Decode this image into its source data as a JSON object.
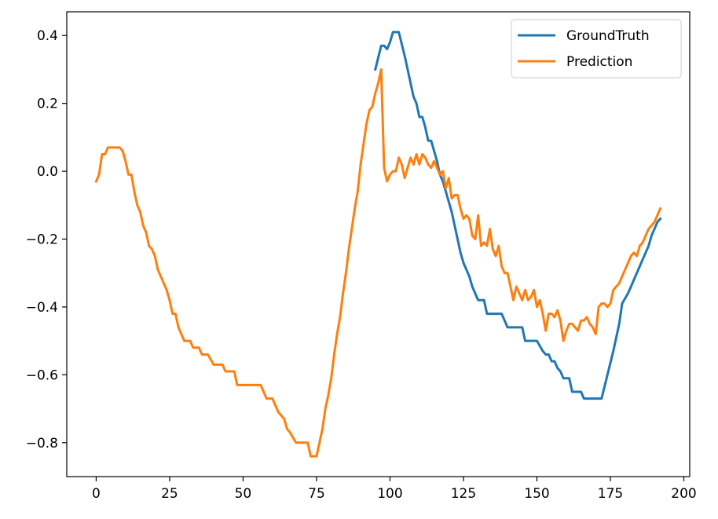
{
  "chart_data": {
    "type": "line",
    "xlim": [
      -10,
      202
    ],
    "ylim": [
      -0.9,
      0.47
    ],
    "xticks": [
      0,
      25,
      50,
      75,
      100,
      125,
      150,
      175,
      200
    ],
    "yticks": [
      0.4,
      0.2,
      0.0,
      -0.2,
      -0.4,
      -0.6,
      -0.8
    ],
    "xtick_labels": [
      "0",
      "25",
      "50",
      "75",
      "100",
      "125",
      "150",
      "175",
      "200"
    ],
    "ytick_labels": [
      "0.4",
      "0.2",
      "0.0",
      "−0.2",
      "−0.4",
      "−0.6",
      "−0.8"
    ],
    "legend_position": "top-right",
    "grid": false,
    "series": [
      {
        "name": "GroundTruth",
        "color": "#1f77b4",
        "points": [
          [
            95,
            0.3
          ],
          [
            97,
            0.37
          ],
          [
            98,
            0.37
          ],
          [
            99,
            0.36
          ],
          [
            100,
            0.38
          ],
          [
            101,
            0.41
          ],
          [
            103,
            0.41
          ],
          [
            105,
            0.34
          ],
          [
            107,
            0.26
          ],
          [
            108,
            0.22
          ],
          [
            109,
            0.2
          ],
          [
            110,
            0.16
          ],
          [
            111,
            0.16
          ],
          [
            112,
            0.13
          ],
          [
            113,
            0.09
          ],
          [
            114,
            0.09
          ],
          [
            115,
            0.06
          ],
          [
            116,
            0.03
          ],
          [
            117,
            -0.01
          ],
          [
            118,
            -0.03
          ],
          [
            119,
            -0.06
          ],
          [
            120,
            -0.09
          ],
          [
            121,
            -0.12
          ],
          [
            122,
            -0.16
          ],
          [
            123,
            -0.2
          ],
          [
            124,
            -0.24
          ],
          [
            125,
            -0.27
          ],
          [
            126,
            -0.29
          ],
          [
            127,
            -0.31
          ],
          [
            128,
            -0.34
          ],
          [
            130,
            -0.38
          ],
          [
            132,
            -0.38
          ],
          [
            133,
            -0.42
          ],
          [
            138,
            -0.42
          ],
          [
            140,
            -0.46
          ],
          [
            145,
            -0.46
          ],
          [
            146,
            -0.5
          ],
          [
            150,
            -0.5
          ],
          [
            152,
            -0.53
          ],
          [
            153,
            -0.54
          ],
          [
            154,
            -0.54
          ],
          [
            155,
            -0.56
          ],
          [
            156,
            -0.56
          ],
          [
            157,
            -0.58
          ],
          [
            158,
            -0.59
          ],
          [
            159,
            -0.61
          ],
          [
            161,
            -0.61
          ],
          [
            162,
            -0.65
          ],
          [
            165,
            -0.65
          ],
          [
            166,
            -0.67
          ],
          [
            172,
            -0.67
          ],
          [
            174,
            -0.6
          ],
          [
            176,
            -0.53
          ],
          [
            178,
            -0.45
          ],
          [
            179,
            -0.39
          ],
          [
            181,
            -0.36
          ],
          [
            183,
            -0.32
          ],
          [
            185,
            -0.28
          ],
          [
            187,
            -0.24
          ],
          [
            188,
            -0.22
          ],
          [
            189,
            -0.19
          ],
          [
            190,
            -0.17
          ],
          [
            191,
            -0.15
          ],
          [
            192,
            -0.14
          ]
        ]
      },
      {
        "name": "Prediction",
        "color": "#ff7f0e",
        "points": [
          [
            0,
            -0.03
          ],
          [
            1,
            -0.01
          ],
          [
            2,
            0.05
          ],
          [
            3,
            0.05
          ],
          [
            4,
            0.07
          ],
          [
            8,
            0.07
          ],
          [
            9,
            0.06
          ],
          [
            10,
            0.03
          ],
          [
            11,
            -0.01
          ],
          [
            12,
            -0.01
          ],
          [
            13,
            -0.06
          ],
          [
            14,
            -0.1
          ],
          [
            15,
            -0.12
          ],
          [
            16,
            -0.16
          ],
          [
            17,
            -0.18
          ],
          [
            18,
            -0.22
          ],
          [
            19,
            -0.23
          ],
          [
            20,
            -0.25
          ],
          [
            21,
            -0.29
          ],
          [
            22,
            -0.31
          ],
          [
            23,
            -0.33
          ],
          [
            24,
            -0.35
          ],
          [
            25,
            -0.38
          ],
          [
            26,
            -0.42
          ],
          [
            27,
            -0.42
          ],
          [
            28,
            -0.46
          ],
          [
            29,
            -0.48
          ],
          [
            30,
            -0.5
          ],
          [
            32,
            -0.5
          ],
          [
            33,
            -0.52
          ],
          [
            35,
            -0.52
          ],
          [
            36,
            -0.54
          ],
          [
            38,
            -0.54
          ],
          [
            40,
            -0.57
          ],
          [
            43,
            -0.57
          ],
          [
            44,
            -0.59
          ],
          [
            47,
            -0.59
          ],
          [
            48,
            -0.63
          ],
          [
            56,
            -0.63
          ],
          [
            58,
            -0.67
          ],
          [
            60,
            -0.67
          ],
          [
            62,
            -0.71
          ],
          [
            64,
            -0.73
          ],
          [
            65,
            -0.76
          ],
          [
            66,
            -0.77
          ],
          [
            68,
            -0.8
          ],
          [
            72,
            -0.8
          ],
          [
            73,
            -0.84
          ],
          [
            75,
            -0.84
          ],
          [
            77,
            -0.76
          ],
          [
            78,
            -0.7
          ],
          [
            79,
            -0.66
          ],
          [
            80,
            -0.61
          ],
          [
            81,
            -0.54
          ],
          [
            82,
            -0.48
          ],
          [
            83,
            -0.43
          ],
          [
            84,
            -0.36
          ],
          [
            85,
            -0.3
          ],
          [
            86,
            -0.23
          ],
          [
            87,
            -0.17
          ],
          [
            88,
            -0.11
          ],
          [
            89,
            -0.06
          ],
          [
            90,
            0.02
          ],
          [
            91,
            0.08
          ],
          [
            92,
            0.14
          ],
          [
            93,
            0.18
          ],
          [
            94,
            0.19
          ],
          [
            95,
            0.23
          ],
          [
            96,
            0.26
          ],
          [
            97,
            0.3
          ],
          [
            98,
            0.01
          ],
          [
            99,
            -0.03
          ],
          [
            100,
            -0.01
          ],
          [
            101,
            0.0
          ],
          [
            102,
            0.0
          ],
          [
            103,
            0.04
          ],
          [
            104,
            0.02
          ],
          [
            105,
            -0.02
          ],
          [
            106,
            0.01
          ],
          [
            107,
            0.04
          ],
          [
            108,
            0.02
          ],
          [
            109,
            0.05
          ],
          [
            110,
            0.02
          ],
          [
            111,
            0.05
          ],
          [
            112,
            0.04
          ],
          [
            113,
            0.02
          ],
          [
            114,
            0.01
          ],
          [
            115,
            0.03
          ],
          [
            116,
            0.01
          ],
          [
            117,
            -0.01
          ],
          [
            118,
            0.0
          ],
          [
            119,
            -0.05
          ],
          [
            120,
            -0.02
          ],
          [
            121,
            -0.08
          ],
          [
            122,
            -0.07
          ],
          [
            123,
            -0.07
          ],
          [
            124,
            -0.11
          ],
          [
            125,
            -0.14
          ],
          [
            126,
            -0.13
          ],
          [
            127,
            -0.14
          ],
          [
            128,
            -0.19
          ],
          [
            129,
            -0.2
          ],
          [
            130,
            -0.13
          ],
          [
            131,
            -0.22
          ],
          [
            132,
            -0.21
          ],
          [
            133,
            -0.22
          ],
          [
            134,
            -0.17
          ],
          [
            135,
            -0.23
          ],
          [
            136,
            -0.25
          ],
          [
            137,
            -0.22
          ],
          [
            138,
            -0.28
          ],
          [
            139,
            -0.3
          ],
          [
            140,
            -0.3
          ],
          [
            141,
            -0.34
          ],
          [
            142,
            -0.38
          ],
          [
            143,
            -0.34
          ],
          [
            144,
            -0.36
          ],
          [
            145,
            -0.38
          ],
          [
            146,
            -0.35
          ],
          [
            147,
            -0.38
          ],
          [
            148,
            -0.37
          ],
          [
            149,
            -0.35
          ],
          [
            150,
            -0.4
          ],
          [
            151,
            -0.38
          ],
          [
            152,
            -0.42
          ],
          [
            153,
            -0.47
          ],
          [
            154,
            -0.42
          ],
          [
            155,
            -0.42
          ],
          [
            156,
            -0.43
          ],
          [
            157,
            -0.41
          ],
          [
            158,
            -0.44
          ],
          [
            159,
            -0.5
          ],
          [
            160,
            -0.47
          ],
          [
            161,
            -0.45
          ],
          [
            162,
            -0.45
          ],
          [
            163,
            -0.46
          ],
          [
            164,
            -0.47
          ],
          [
            165,
            -0.44
          ],
          [
            166,
            -0.44
          ],
          [
            167,
            -0.43
          ],
          [
            168,
            -0.45
          ],
          [
            169,
            -0.46
          ],
          [
            170,
            -0.48
          ],
          [
            171,
            -0.4
          ],
          [
            172,
            -0.39
          ],
          [
            173,
            -0.39
          ],
          [
            174,
            -0.4
          ],
          [
            175,
            -0.39
          ],
          [
            176,
            -0.35
          ],
          [
            177,
            -0.34
          ],
          [
            178,
            -0.33
          ],
          [
            179,
            -0.31
          ],
          [
            180,
            -0.29
          ],
          [
            181,
            -0.27
          ],
          [
            182,
            -0.25
          ],
          [
            183,
            -0.24
          ],
          [
            184,
            -0.25
          ],
          [
            185,
            -0.22
          ],
          [
            186,
            -0.21
          ],
          [
            187,
            -0.19
          ],
          [
            188,
            -0.17
          ],
          [
            189,
            -0.16
          ],
          [
            190,
            -0.15
          ],
          [
            191,
            -0.13
          ],
          [
            192,
            -0.11
          ]
        ]
      }
    ]
  }
}
